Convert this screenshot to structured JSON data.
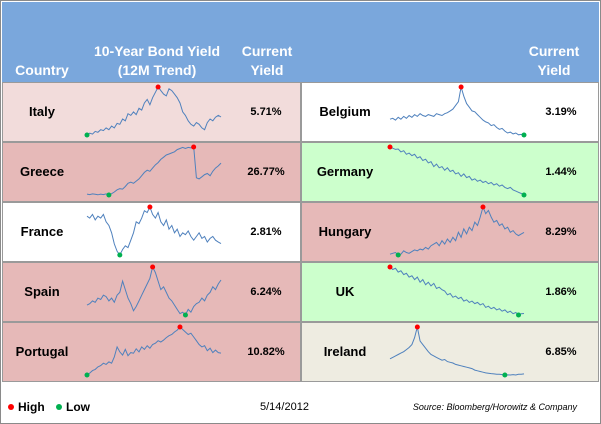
{
  "header": {
    "country": "Country",
    "bond_line1": "10-Year Bond Yield",
    "bond_line2": "(12M Trend)",
    "current_line1": "Current",
    "current_line2": "Yield",
    "right_current_line1": "Current",
    "right_current_line2": "Yield"
  },
  "colors": {
    "header_bg": "#7aa7dc",
    "pink_light": "#f2dcdb",
    "pink_dark": "#e6b9b8",
    "green": "#ccffcc",
    "beige": "#eeece1",
    "white": "#ffffff",
    "sparkline": "#4f81bd",
    "high": "#ff0000",
    "low": "#00b050"
  },
  "legend": {
    "high": "High",
    "low": "Low"
  },
  "date": "5/14/2012",
  "source": "Source: Bloomberg/Horowitz & Company",
  "chart_data": {
    "type": "line",
    "title": "10-Year Bond Yield (12M Trend)",
    "countries": [
      {
        "name": "Italy",
        "yield": "5.71%",
        "bg": "pink_light",
        "values": [
          4.7,
          4.8,
          4.75,
          4.9,
          4.85,
          5.0,
          4.95,
          5.1,
          5.0,
          5.2,
          5.1,
          5.35,
          5.3,
          5.6,
          5.5,
          5.9,
          5.8,
          6.0,
          5.85,
          6.2,
          6.1,
          6.5,
          6.7,
          6.4,
          6.8,
          7.1,
          7.4,
          7.2,
          7.0,
          6.9,
          7.3,
          7.2,
          7.0,
          6.8,
          6.5,
          6.0,
          5.8,
          5.5,
          5.3,
          5.2,
          5.4,
          5.3,
          5.1,
          5.0,
          5.4,
          5.6,
          5.5,
          5.7,
          5.8,
          5.71
        ]
      },
      {
        "name": "Greece",
        "yield": "26.77%",
        "bg": "pink_dark",
        "values": [
          12.5,
          12.3,
          12.6,
          12.4,
          12.2,
          12.5,
          12.3,
          12.6,
          12.1,
          12.7,
          13.5,
          14.5,
          15.0,
          14.8,
          16.0,
          17.5,
          18.0,
          17.5,
          18.5,
          19.5,
          21.0,
          22.5,
          23.5,
          23.0,
          24.5,
          26.0,
          27.0,
          28.5,
          29.5,
          30.5,
          31.0,
          31.5,
          32.0,
          33.0,
          33.5,
          34.0,
          33.5,
          34.0,
          33.8,
          34.2,
          20.0,
          19.5,
          20.5,
          21.5,
          22.0,
          21.0,
          23.0,
          24.5,
          25.5,
          26.77
        ]
      },
      {
        "name": "France",
        "yield": "2.81%",
        "bg": "white",
        "values": [
          3.55,
          3.5,
          3.6,
          3.45,
          3.55,
          3.5,
          3.6,
          3.4,
          3.3,
          3.1,
          2.8,
          2.6,
          2.5,
          2.65,
          2.75,
          2.7,
          2.9,
          3.1,
          3.4,
          3.35,
          3.5,
          3.7,
          3.65,
          3.8,
          3.6,
          3.5,
          3.65,
          3.4,
          3.3,
          3.45,
          3.2,
          3.3,
          3.1,
          3.2,
          3.0,
          3.1,
          3.05,
          3.15,
          3.0,
          2.9,
          3.0,
          3.1,
          2.95,
          3.0,
          2.85,
          2.95,
          3.0,
          2.9,
          2.85,
          2.81
        ]
      },
      {
        "name": "Spain",
        "yield": "6.24%",
        "bg": "pink_dark",
        "values": [
          5.35,
          5.4,
          5.5,
          5.45,
          5.6,
          5.55,
          5.7,
          5.65,
          5.5,
          5.6,
          5.45,
          5.7,
          5.8,
          6.2,
          5.9,
          5.6,
          5.4,
          5.15,
          5.3,
          5.5,
          5.7,
          5.9,
          6.1,
          6.3,
          6.7,
          6.5,
          6.2,
          5.9,
          6.0,
          5.8,
          5.6,
          5.5,
          5.35,
          5.2,
          5.05,
          5.1,
          5.0,
          5.2,
          5.1,
          5.3,
          5.4,
          5.45,
          5.6,
          5.5,
          5.7,
          5.8,
          6.0,
          5.9,
          6.1,
          6.24
        ]
      },
      {
        "name": "Portugal",
        "yield": "10.82%",
        "bg": "pink_dark",
        "values": [
          7.3,
          7.6,
          8.0,
          8.2,
          8.6,
          8.8,
          9.2,
          9.0,
          9.4,
          9.2,
          10.2,
          11.8,
          11.0,
          10.5,
          11.4,
          10.4,
          10.9,
          10.8,
          11.5,
          11.0,
          11.8,
          11.4,
          12.0,
          11.6,
          12.2,
          12.4,
          12.8,
          12.6,
          12.9,
          13.3,
          13.6,
          13.8,
          14.2,
          14.5,
          15.0,
          14.6,
          14.2,
          13.8,
          14.0,
          13.4,
          12.8,
          12.2,
          11.8,
          12.0,
          11.2,
          11.6,
          10.9,
          11.3,
          10.9,
          10.82
        ]
      },
      {
        "name": "Belgium",
        "yield": "3.19%",
        "bg": "white",
        "values": [
          4.05,
          4.1,
          4.0,
          4.15,
          4.05,
          4.2,
          4.1,
          4.25,
          4.15,
          4.3,
          4.2,
          4.35,
          4.25,
          4.2,
          4.3,
          4.25,
          4.2,
          4.35,
          4.3,
          4.25,
          4.35,
          4.4,
          4.5,
          4.6,
          4.8,
          5.0,
          5.8,
          5.3,
          4.9,
          4.7,
          4.5,
          4.45,
          4.3,
          4.15,
          4.0,
          3.9,
          3.85,
          3.7,
          3.75,
          3.6,
          3.5,
          3.55,
          3.4,
          3.3,
          3.35,
          3.25,
          3.3,
          3.2,
          3.22,
          3.19
        ]
      },
      {
        "name": "Germany",
        "yield": "1.44%",
        "bg": "green",
        "values": [
          3.4,
          3.35,
          3.3,
          3.32,
          3.2,
          3.25,
          3.1,
          3.15,
          3.05,
          3.1,
          2.95,
          3.0,
          2.85,
          2.9,
          2.75,
          2.8,
          2.6,
          2.7,
          2.55,
          2.6,
          2.45,
          2.55,
          2.4,
          2.45,
          2.3,
          2.35,
          2.2,
          2.3,
          2.15,
          2.2,
          2.05,
          2.1,
          2.0,
          2.05,
          1.95,
          2.0,
          1.9,
          1.95,
          1.85,
          1.9,
          1.8,
          1.85,
          1.75,
          1.7,
          1.75,
          1.65,
          1.6,
          1.55,
          1.5,
          1.44
        ]
      },
      {
        "name": "Hungary",
        "yield": "8.29%",
        "bg": "pink_dark",
        "values": [
          7.0,
          7.05,
          7.1,
          6.95,
          7.0,
          7.2,
          7.1,
          7.05,
          7.15,
          7.25,
          7.2,
          7.3,
          7.25,
          7.4,
          7.3,
          7.5,
          7.6,
          7.7,
          7.5,
          7.8,
          7.6,
          7.9,
          7.7,
          8.0,
          7.8,
          8.3,
          8.0,
          8.5,
          8.2,
          8.6,
          8.4,
          8.9,
          8.7,
          9.2,
          9.8,
          9.4,
          9.6,
          9.2,
          8.9,
          9.0,
          8.7,
          8.8,
          8.5,
          8.6,
          8.3,
          8.4,
          8.2,
          8.1,
          8.2,
          8.29
        ]
      },
      {
        "name": "UK",
        "yield": "1.86%",
        "bg": "green",
        "values": [
          3.7,
          3.6,
          3.65,
          3.5,
          3.55,
          3.4,
          3.45,
          3.3,
          3.35,
          3.2,
          3.3,
          3.1,
          3.2,
          3.0,
          3.1,
          2.95,
          3.05,
          2.85,
          2.9,
          2.8,
          2.75,
          2.6,
          2.65,
          2.5,
          2.55,
          2.45,
          2.5,
          2.35,
          2.4,
          2.3,
          2.35,
          2.25,
          2.3,
          2.2,
          2.25,
          2.1,
          2.15,
          2.05,
          2.1,
          2.0,
          2.05,
          1.95,
          2.0,
          1.9,
          1.95,
          1.85,
          1.9,
          1.8,
          1.85,
          1.86
        ]
      },
      {
        "name": "Ireland",
        "yield": "6.85%",
        "bg": "beige",
        "values": [
          9.0,
          9.2,
          9.4,
          9.6,
          9.8,
          10.0,
          10.3,
          10.6,
          11.0,
          12.0,
          13.5,
          11.5,
          11.0,
          10.5,
          10.0,
          9.6,
          9.4,
          9.2,
          9.0,
          8.8,
          8.9,
          8.6,
          8.5,
          8.4,
          8.2,
          8.1,
          8.0,
          7.9,
          7.8,
          7.7,
          7.6,
          7.4,
          7.3,
          7.2,
          7.1,
          7.0,
          6.95,
          6.9,
          6.85,
          6.8,
          6.8,
          6.75,
          6.7,
          6.72,
          6.7,
          6.75,
          6.7,
          6.8,
          6.82,
          6.85
        ]
      }
    ]
  }
}
